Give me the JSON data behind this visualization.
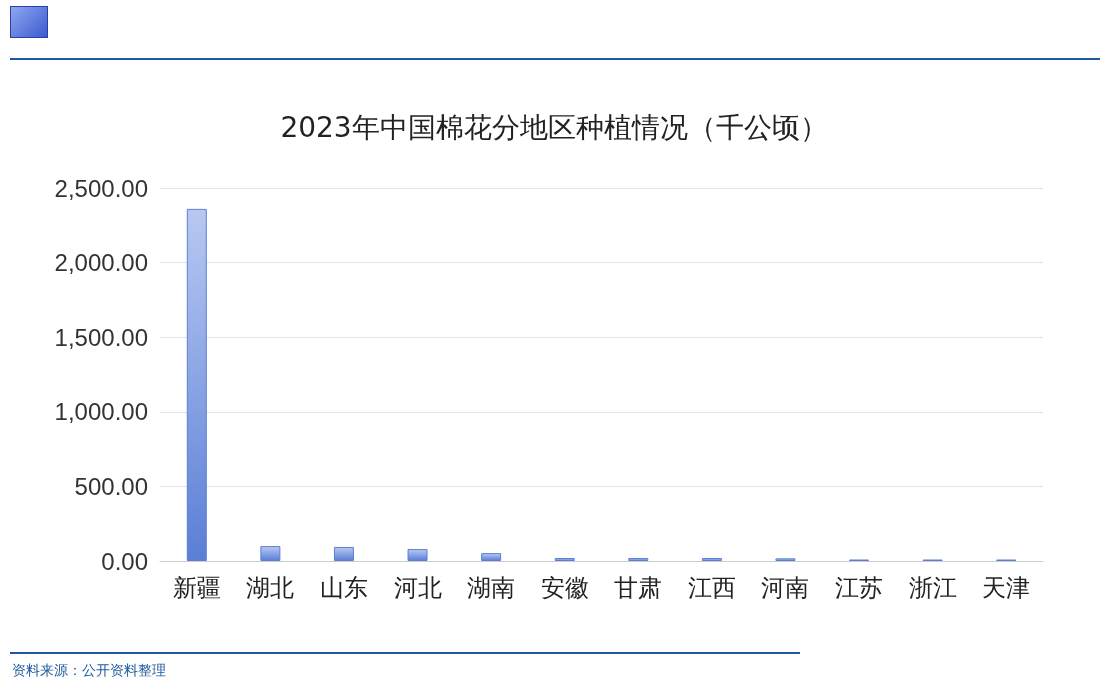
{
  "chart_data": {
    "type": "bar",
    "title": "2023年中国棉花分地区种植情况（千公顷）",
    "categories": [
      "新疆",
      "湖北",
      "山东",
      "河北",
      "湖南",
      "安徽",
      "甘肃",
      "江西",
      "河南",
      "江苏",
      "浙江",
      "天津"
    ],
    "values": [
      2360,
      100,
      94,
      80,
      53,
      20,
      20,
      20,
      18,
      10,
      10,
      10
    ],
    "color": "#5b7fd6",
    "ylim": [
      0,
      2500
    ],
    "yticks": [
      {
        "value": 0,
        "label": "0.00"
      },
      {
        "value": 500,
        "label": "500.00"
      },
      {
        "value": 1000,
        "label": "1,000.00"
      },
      {
        "value": 1500,
        "label": "1,500.00"
      },
      {
        "value": 2000,
        "label": "2,000.00"
      },
      {
        "value": 2500,
        "label": "2,500.00"
      }
    ],
    "grid": "y",
    "annotations": [
      "资料来源：公开资料整理"
    ]
  }
}
